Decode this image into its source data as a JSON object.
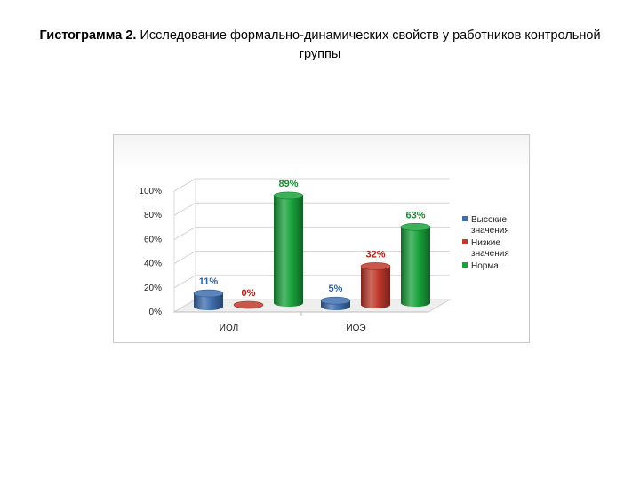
{
  "page": {
    "title_bold": "Гистограмма 2.",
    "title_rest": " Исследование формально-динамических свойств у работников контрольной  группы"
  },
  "chart_data": {
    "type": "bar",
    "style": "3d-cylinder",
    "categories": [
      "ИОЛ",
      "ИОЭ"
    ],
    "series": [
      {
        "name": "Высокие значения",
        "values": [
          11,
          5
        ],
        "labels": [
          "11%",
          "5%"
        ],
        "color": "#3f6fb0",
        "label_color": "#2f5f9f"
      },
      {
        "name": "Низкие значения",
        "values": [
          0,
          32
        ],
        "labels": [
          "0%",
          "32%"
        ],
        "color": "#c0392b",
        "label_color": "#a9201a"
      },
      {
        "name": "Норма",
        "values": [
          89,
          63
        ],
        "labels": [
          "89%",
          "63%"
        ],
        "color": "#1aa33c",
        "label_color": "#1a8a33"
      }
    ],
    "y_ticks": [
      "0%",
      "20%",
      "40%",
      "60%",
      "80%",
      "100%"
    ],
    "ylim": [
      0,
      100
    ],
    "grid": true,
    "legend_position": "right"
  }
}
